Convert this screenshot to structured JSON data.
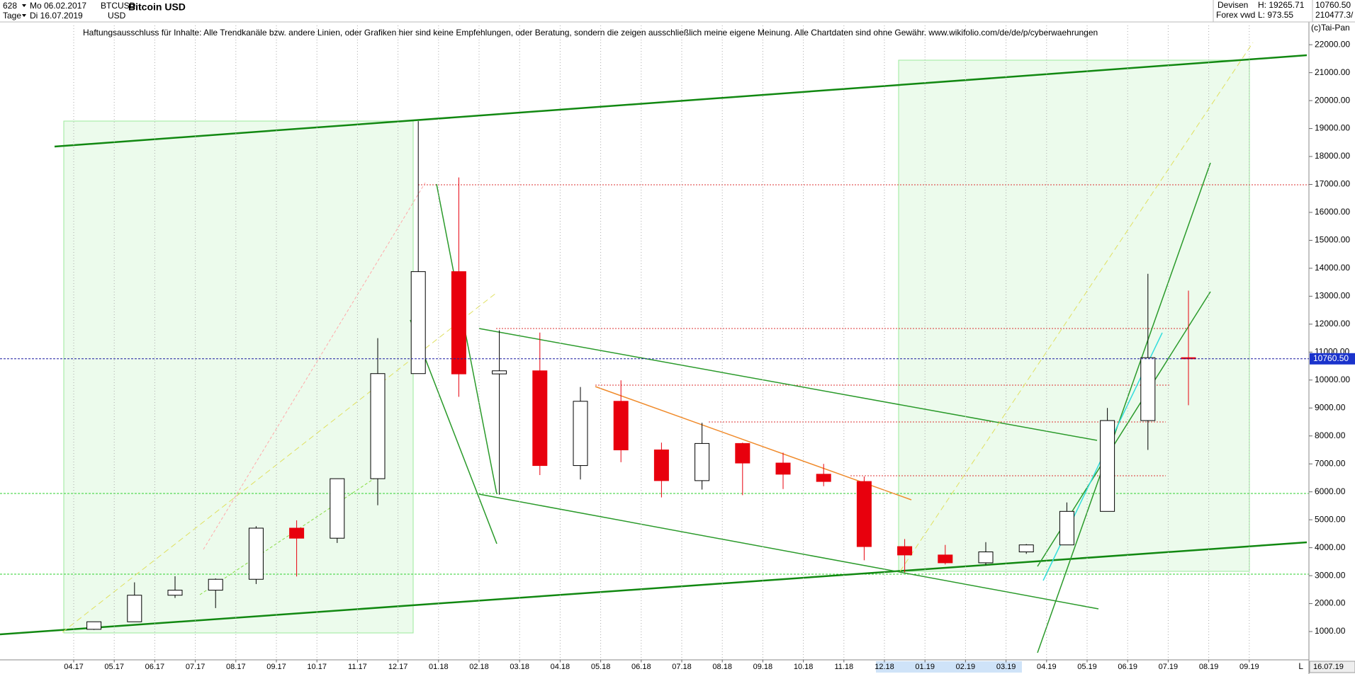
{
  "header": {
    "id": "628",
    "period": "Tage",
    "from": "Mo 06.02.2017",
    "to": "Di 16.07.2019",
    "symbol": "BTCUSD",
    "currency": "USD",
    "market": "Devisen",
    "source": "Forex vwd",
    "high": "H: 19265.71",
    "low": "L: 973.55",
    "last": "10760.50",
    "volume": "210477.3/",
    "copyright": "(c)Tai-Pan",
    "scale_mode": "L",
    "disclaimer": "Haftungsausschluss für Inhalte: Alle Trendkanäle bzw. andere Linien, oder Grafiken hier sind keine Empfehlungen, oder Beratung, sondern die zeigen ausschließlich meine eigene Meinung. Alle Chartdaten sind ohne Gewähr.  www.wikifolio.com/de/de/p/cyberwaehrungen"
  },
  "chart_data": {
    "type": "candlestick",
    "title": "Bitcoin USD",
    "categories": [
      "04.17",
      "05.17",
      "06.17",
      "07.17",
      "08.17",
      "09.17",
      "10.17",
      "11.17",
      "12.17",
      "01.18",
      "02.18",
      "03.18",
      "04.18",
      "05.18",
      "06.18",
      "07.18",
      "08.18",
      "09.18",
      "10.18",
      "11.18",
      "12.18",
      "01.19",
      "02.19",
      "03.19",
      "04.19",
      "05.19",
      "06.19",
      "07.19",
      "08.19",
      "09.19"
    ],
    "open": [
      1080,
      1350,
      2300,
      2480,
      2870,
      4700,
      4340,
      6470,
      10230,
      13880,
      10220,
      10330,
      6940,
      9240,
      7500,
      6400,
      7730,
      7030,
      6630,
      6370,
      4040,
      3740,
      3460,
      3850,
      4100,
      5300,
      8550,
      10800,
      null,
      null
    ],
    "high": [
      1350,
      2760,
      2980,
      2900,
      4770,
      4980,
      6470,
      11500,
      19266,
      17250,
      11780,
      11700,
      9750,
      9990,
      7760,
      8470,
      7760,
      7400,
      7000,
      6550,
      4310,
      4100,
      4200,
      4130,
      5620,
      9000,
      13800,
      13200,
      null,
      null
    ],
    "low": [
      1060,
      1350,
      2200,
      1840,
      2700,
      2970,
      4170,
      5520,
      10230,
      9400,
      5900,
      6600,
      6440,
      7060,
      5800,
      6080,
      5880,
      6100,
      6200,
      3550,
      3120,
      3400,
      3380,
      3780,
      4100,
      5300,
      7500,
      9100,
      null,
      null
    ],
    "close": [
      1350,
      2300,
      2480,
      2870,
      4700,
      4340,
      6470,
      10230,
      13880,
      10220,
      10330,
      6940,
      9240,
      7500,
      6400,
      7730,
      7030,
      6630,
      6370,
      4040,
      3740,
      3460,
      3850,
      4100,
      5300,
      8550,
      10800,
      10760,
      null,
      null
    ],
    "up_color": "#000000",
    "down_color": "#e8000d",
    "ylim": [
      0,
      23600
    ],
    "yticks": [
      {
        "value": 1000,
        "label": "1000.00"
      },
      {
        "value": 2000,
        "label": "2000.00"
      },
      {
        "value": 3000,
        "label": "3000.00"
      },
      {
        "value": 4000,
        "label": "4000.00"
      },
      {
        "value": 5000,
        "label": "5000.00"
      },
      {
        "value": 6000,
        "label": "6000.00"
      },
      {
        "value": 7000,
        "label": "7000.00"
      },
      {
        "value": 8000,
        "label": "8000.00"
      },
      {
        "value": 9000,
        "label": "9000.00"
      },
      {
        "value": 10000,
        "label": "10000.00"
      },
      {
        "value": 11000,
        "label": "11000.00"
      },
      {
        "value": 12000,
        "label": "12000.00"
      },
      {
        "value": 13000,
        "label": "13000.00"
      },
      {
        "value": 14000,
        "label": "14000.00"
      },
      {
        "value": 15000,
        "label": "15000.00"
      },
      {
        "value": 16000,
        "label": "16000.00"
      },
      {
        "value": 17000,
        "label": "17000.00"
      },
      {
        "value": 18000,
        "label": "18000.00"
      },
      {
        "value": 19000,
        "label": "19000.00"
      },
      {
        "value": 20000,
        "label": "20000.00"
      },
      {
        "value": 21000,
        "label": "21000.00"
      },
      {
        "value": 22000,
        "label": "22000.00"
      }
    ],
    "last_price": {
      "value": 10760.5,
      "label": "10760.50"
    },
    "end_date": "16.07.19",
    "grid": true
  }
}
